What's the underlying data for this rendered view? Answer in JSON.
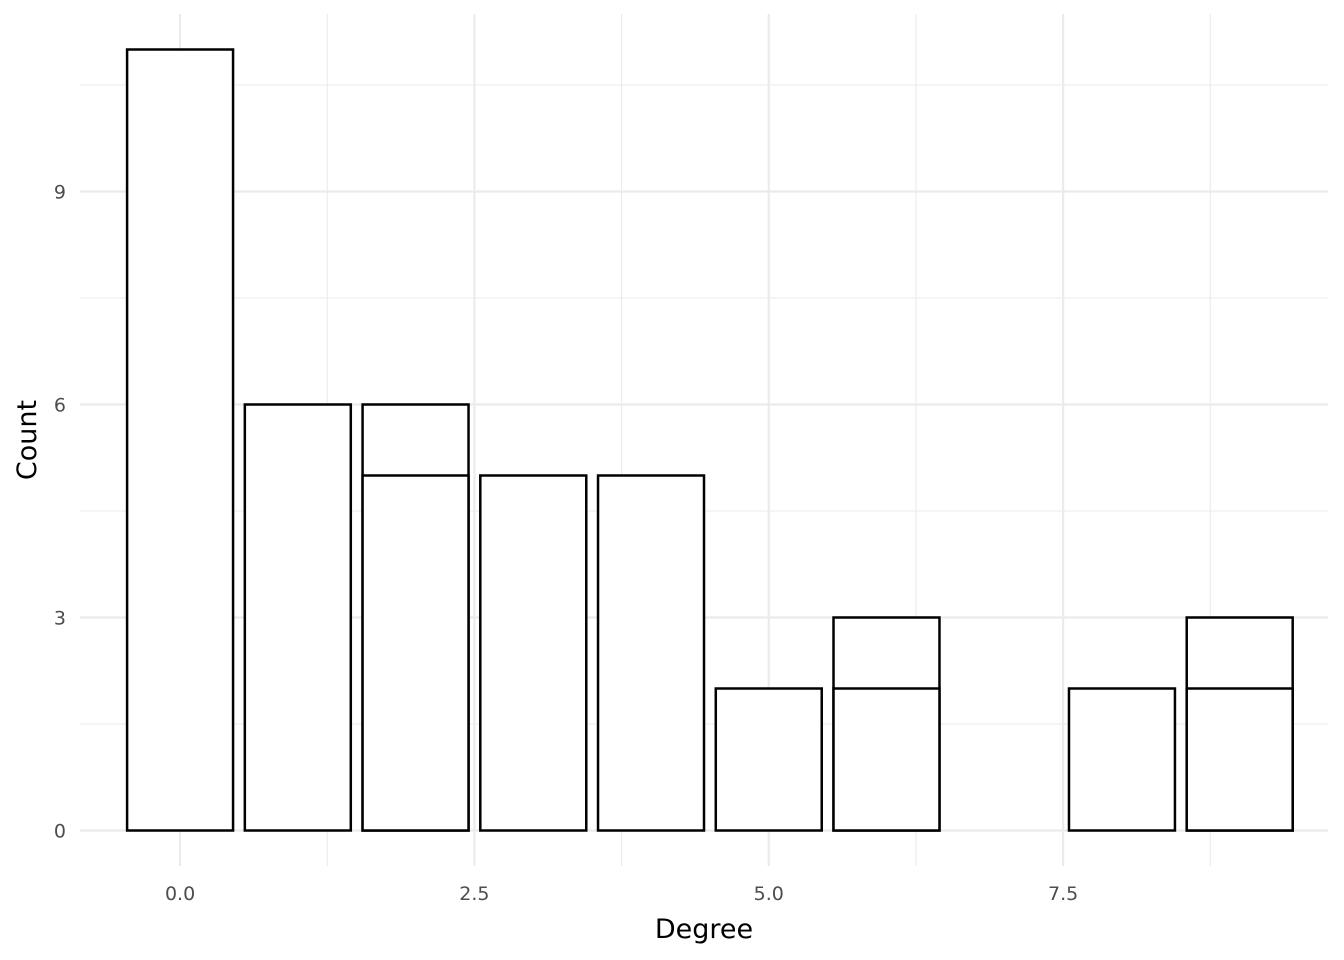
{
  "chart_data": {
    "type": "bar",
    "title": "",
    "xlabel": "Degree",
    "ylabel": "Count",
    "xlim": [
      -0.85,
      9.75
    ],
    "ylim": [
      -0.5,
      11.5
    ],
    "x_ticks": [
      0.0,
      2.5,
      5.0,
      7.5
    ],
    "x_tick_labels": [
      "0.0",
      "2.5",
      "5.0",
      "7.5"
    ],
    "y_ticks": [
      0,
      3,
      6,
      9
    ],
    "y_tick_labels": [
      "0",
      "3",
      "6",
      "9"
    ],
    "grid": true,
    "legend": "none",
    "bar_width": 0.9,
    "fill_color": "#ffffff",
    "outline_color": "#000000",
    "series": [
      {
        "values": [
          11,
          6,
          5,
          5,
          5,
          2,
          2,
          null,
          2,
          2
        ]
      },
      {
        "values": [
          null,
          null,
          6,
          null,
          null,
          null,
          3,
          null,
          null,
          3
        ]
      }
    ],
    "x": [
      0,
      1,
      2,
      3,
      4,
      5,
      6,
      7,
      8,
      9
    ]
  }
}
